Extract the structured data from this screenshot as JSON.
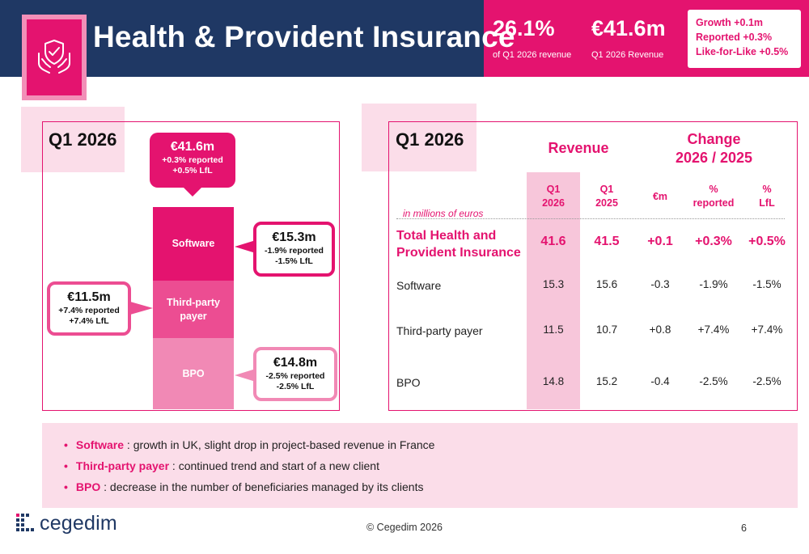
{
  "header": {
    "title": "Health & Provident Insurance",
    "kpi1_value": "26.1%",
    "kpi1_label": "of Q1 2026 revenue",
    "kpi2_value": "€41.6m",
    "kpi2_label": "Q1 2026 Revenue",
    "growth_lines": [
      "Growth +0.1m",
      "Reported +0.3%",
      "Like-for-Like  +0.5%"
    ]
  },
  "left_panel": {
    "title": "Q1 2026",
    "total_callout": {
      "value": "€41.6m",
      "line1": "+0.3%  reported",
      "line2": "+0.5%  LfL"
    },
    "segments": [
      {
        "label": "Software",
        "color": "#e4136f",
        "callout": {
          "value": "€15.3m",
          "line1": "-1.9%  reported",
          "line2": "-1.5%  LfL"
        }
      },
      {
        "label": "Third-party payer",
        "color": "#ec4d92",
        "callout": {
          "value": "€11.5m",
          "line1": "+7.4%  reported",
          "line2": "+7.4%  LfL"
        }
      },
      {
        "label": "BPO",
        "color": "#f189b5",
        "callout": {
          "value": "€14.8m",
          "line1": "-2.5%  reported",
          "line2": "-2.5%  LfL"
        }
      }
    ]
  },
  "table": {
    "title": "Q1 2026",
    "revenue_header": "Revenue",
    "change_header": [
      "Change",
      "2026 / 2025"
    ],
    "units": "in millions of euros",
    "columns": [
      [
        "Q1",
        "2026"
      ],
      [
        "Q1",
        "2025"
      ],
      [
        "€m"
      ],
      [
        "%",
        "reported"
      ],
      [
        "%",
        "LfL"
      ]
    ],
    "total_row": {
      "label": [
        "Total Health and",
        "Provident Insurance"
      ],
      "values": [
        "41.6",
        "41.5",
        "+0.1",
        "+0.3%",
        "+0.5%"
      ]
    },
    "rows": [
      {
        "label": "Software",
        "values": [
          "15.3",
          "15.6",
          "-0.3",
          "-1.9%",
          "-1.5%"
        ]
      },
      {
        "label": "Third-party payer",
        "values": [
          "11.5",
          "10.7",
          "+0.8",
          "+7.4%",
          "+7.4%"
        ]
      },
      {
        "label": "BPO",
        "values": [
          "14.8",
          "15.2",
          "-0.4",
          "-2.5%",
          "-2.5%"
        ]
      }
    ]
  },
  "comments": [
    {
      "keyword": "Software",
      "text": " : growth in UK, slight drop in project-based revenue in France"
    },
    {
      "keyword": "Third-party payer",
      "text": " : continued trend and start of a new client"
    },
    {
      "keyword": "BPO",
      "text": " : decrease in the number of beneficiaries managed by its clients"
    }
  ],
  "footer": {
    "copyright": "© Cegedim 2026",
    "page": "6",
    "logo_text": "cegedim"
  },
  "colors": {
    "navy": "#1f3864",
    "accent": "#e4136f",
    "light_pink": "#fbdde9"
  }
}
